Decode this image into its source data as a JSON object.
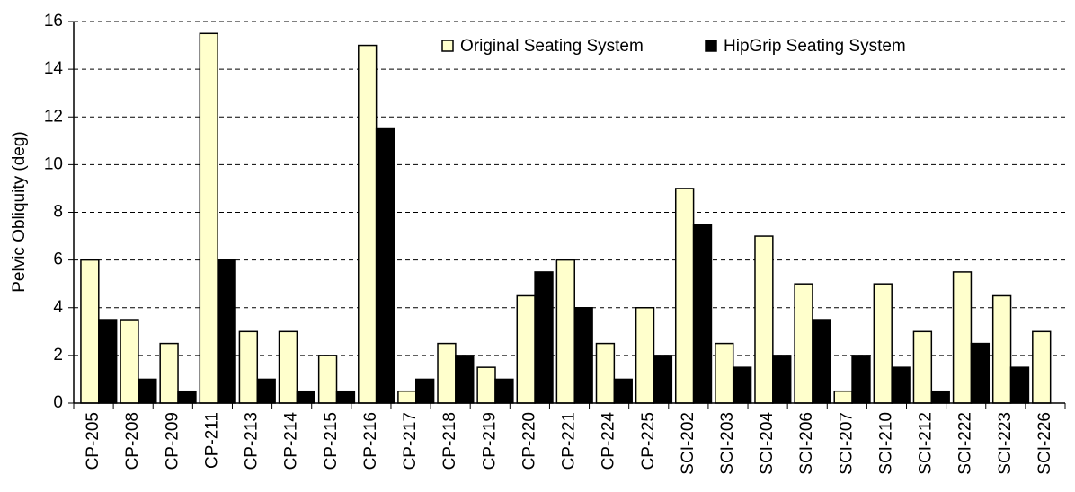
{
  "chart_data": {
    "type": "bar",
    "y_label": "Pelvic Obliquity (deg)",
    "categories": [
      "CP-205",
      "CP-208",
      "CP-209",
      "CP-211",
      "CP-213",
      "CP-214",
      "CP-215",
      "CP-216",
      "CP-217",
      "CP-218",
      "CP-219",
      "CP-220",
      "CP-221",
      "CP-224",
      "CP-225",
      "SCI-202",
      "SCI-203",
      "SCI-204",
      "SCI-206",
      "SCI-207",
      "SCI-210",
      "SCI-212",
      "SCI-222",
      "SCI-223",
      "SCI-226"
    ],
    "series": [
      {
        "name": "Original Seating System",
        "color": "#ffffcc",
        "values": [
          6,
          3.5,
          2.5,
          15.5,
          3,
          3,
          2,
          15,
          0.5,
          2.5,
          1.5,
          4.5,
          6,
          2.5,
          4,
          9,
          2.5,
          7,
          5,
          0.5,
          5,
          3,
          5.5,
          4.5,
          3
        ]
      },
      {
        "name": "HipGrip Seating System",
        "color": "#000000",
        "values": [
          3.5,
          1,
          0.5,
          6,
          1,
          0.5,
          0.5,
          11.5,
          1,
          2,
          1,
          5.5,
          4,
          1,
          2,
          7.5,
          1.5,
          2,
          3.5,
          2,
          1.5,
          0.5,
          2.5,
          1.5,
          0
        ]
      }
    ],
    "ylim": [
      0,
      16
    ],
    "yticks": [
      0,
      2,
      4,
      6,
      8,
      10,
      12,
      14,
      16
    ],
    "grid": true,
    "legend": "top"
  }
}
